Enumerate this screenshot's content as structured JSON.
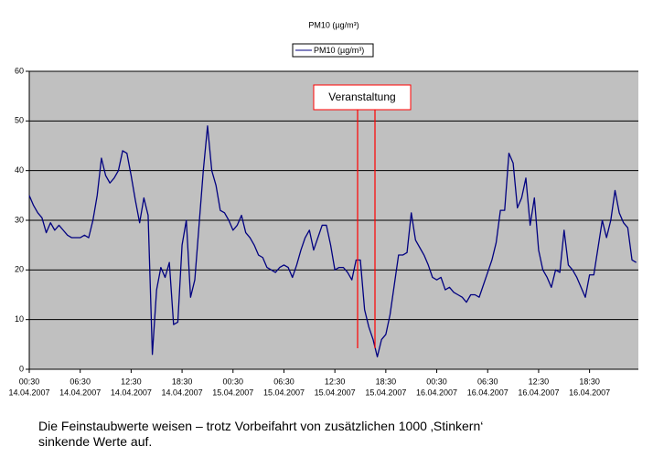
{
  "chart_data": {
    "type": "line",
    "title": "PM10 (µg/m³)",
    "categories": [
      {
        "time": "00:30",
        "date": "14.04.2007"
      },
      null,
      null,
      null,
      null,
      null,
      null,
      null,
      null,
      null,
      null,
      null,
      {
        "time": "06:30",
        "date": "14.04.2007"
      },
      null,
      null,
      null,
      null,
      null,
      null,
      null,
      null,
      null,
      null,
      null,
      {
        "time": "12:30",
        "date": "14.04.2007"
      },
      null,
      null,
      null,
      null,
      null,
      null,
      null,
      null,
      null,
      null,
      null,
      {
        "time": "18:30",
        "date": "14.04.2007"
      },
      null,
      null,
      null,
      null,
      null,
      null,
      null,
      null,
      null,
      null,
      null,
      {
        "time": "00:30",
        "date": "15.04.2007"
      },
      null,
      null,
      null,
      null,
      null,
      null,
      null,
      null,
      null,
      null,
      null,
      {
        "time": "06:30",
        "date": "15.04.2007"
      },
      null,
      null,
      null,
      null,
      null,
      null,
      null,
      null,
      null,
      null,
      null,
      {
        "time": "12:30",
        "date": "15.04.2007"
      },
      null,
      null,
      null,
      null,
      null,
      null,
      null,
      null,
      null,
      null,
      null,
      {
        "time": "18:30",
        "date": "15.04.2007"
      },
      null,
      null,
      null,
      null,
      null,
      null,
      null,
      null,
      null,
      null,
      null,
      {
        "time": "00:30",
        "date": "16.04.2007"
      },
      null,
      null,
      null,
      null,
      null,
      null,
      null,
      null,
      null,
      null,
      null,
      {
        "time": "06:30",
        "date": "16.04.2007"
      },
      null,
      null,
      null,
      null,
      null,
      null,
      null,
      null,
      null,
      null,
      null,
      {
        "time": "12:30",
        "date": "16.04.2007"
      },
      null,
      null,
      null,
      null,
      null,
      null,
      null,
      null,
      null,
      null,
      null,
      {
        "time": "18:30",
        "date": "16.04.2007"
      },
      null,
      null,
      null,
      null,
      null,
      null,
      null,
      null,
      null,
      null,
      null
    ],
    "series": [
      {
        "name": "PM10 (µg/m³)",
        "color": "#000080",
        "values": [
          35,
          33,
          31.5,
          30.5,
          27.5,
          29.5,
          28,
          29,
          28,
          27,
          26.5,
          26.5,
          26.5,
          27,
          26.5,
          30,
          35,
          42.5,
          39,
          37.5,
          38.5,
          40,
          44,
          43.5,
          39,
          34,
          29.5,
          34.5,
          31,
          3,
          16,
          20.5,
          18.5,
          21.5,
          9,
          9.5,
          25,
          30,
          14.5,
          18,
          29,
          40,
          49,
          40,
          37,
          32,
          31.5,
          30,
          28,
          29,
          31,
          27.5,
          26.5,
          25,
          23,
          22.5,
          20.5,
          20,
          19.5,
          20.5,
          21,
          20.5,
          18.5,
          21,
          24,
          26.5,
          28,
          24,
          26.5,
          29,
          29,
          25,
          20,
          20.5,
          20.5,
          19.5,
          18,
          22,
          22,
          12,
          8.5,
          6,
          2.5,
          6,
          7,
          11,
          17,
          23,
          23,
          23.5,
          31.5,
          26,
          24.5,
          23,
          21,
          18.5,
          18,
          18.5,
          16,
          16.5,
          15.5,
          15,
          14.5,
          13.5,
          15,
          15,
          14.5,
          17,
          19.5,
          22,
          25.5,
          32,
          32,
          43.5,
          41.5,
          32.5,
          34.5,
          38.5,
          29,
          34.5,
          24,
          20,
          18.5,
          16.5,
          20,
          19.5,
          28,
          21,
          20,
          18.5,
          16.5,
          14.5,
          19,
          19,
          24.5,
          30,
          26.5,
          30,
          36,
          31.5,
          29.5,
          28.5,
          22,
          21.5
        ]
      }
    ],
    "ylim": [
      0,
      60
    ],
    "yticks": [
      0,
      10,
      20,
      30,
      40,
      50,
      60
    ],
    "grid": true,
    "plot_background": "#c0c0c0",
    "annotation": {
      "text": "Veranstaltung",
      "color": "#ff0000"
    },
    "caption": [
      "Die Feinstaubwerte weisen – trotz Vorbeifahrt von zusätzlichen 1000 ‚Stinkern‘",
      "sinkende Werte auf."
    ]
  }
}
